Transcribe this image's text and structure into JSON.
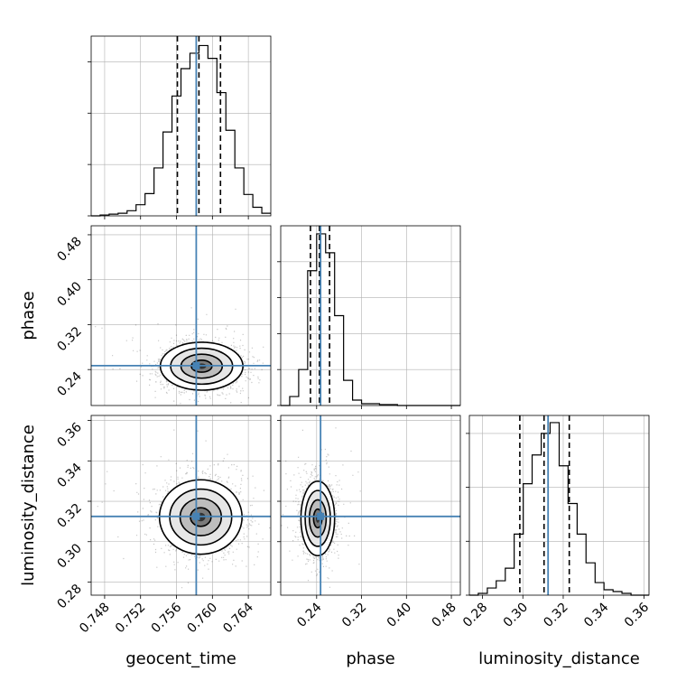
{
  "chart_data": {
    "type": "corner",
    "parameters": [
      "geocent_time",
      "phase",
      "luminosity_distance"
    ],
    "axes_labels": {
      "x": [
        "geocent_time",
        "phase",
        "luminosity_distance"
      ],
      "y": [
        "phase",
        "luminosity_distance"
      ]
    },
    "ranges": {
      "geocent_time": [
        0.7465,
        0.7665
      ],
      "phase": [
        0.176,
        0.496
      ],
      "luminosity_distance": [
        0.2735,
        0.3625
      ]
    },
    "ticks": {
      "geocent_time": [
        "0.748",
        "0.752",
        "0.756",
        "0.760",
        "0.764"
      ],
      "phase": [
        "0.24",
        "0.32",
        "0.40",
        "0.48"
      ],
      "luminosity_distance": [
        "0.28",
        "0.30",
        "0.32",
        "0.34",
        "0.36"
      ]
    },
    "truths": {
      "geocent_time": 0.7582,
      "phase": 0.247,
      "luminosity_distance": 0.3125
    },
    "quantiles": {
      "geocent_time": [
        0.7561,
        0.7585,
        0.7609
      ],
      "phase": [
        0.229,
        0.245,
        0.263
      ],
      "luminosity_distance": [
        0.2985,
        0.3105,
        0.323
      ]
    },
    "histograms": {
      "geocent_time": {
        "bin_edges": [
          0.7465,
          0.7475,
          0.7485,
          0.7495,
          0.7505,
          0.7515,
          0.7525,
          0.7535,
          0.7545,
          0.7555,
          0.7565,
          0.7575,
          0.7585,
          0.7595,
          0.7605,
          0.7615,
          0.7625,
          0.7635,
          0.7645,
          0.7655,
          0.7665
        ],
        "counts": [
          0,
          0.5,
          1,
          1.5,
          3,
          6.5,
          13,
          28,
          49,
          70,
          86,
          95,
          99.5,
          92,
          72,
          50,
          28,
          12.5,
          5,
          1.5
        ]
      },
      "phase": {
        "bin_edges": [
          0.176,
          0.192,
          0.208,
          0.224,
          0.24,
          0.256,
          0.272,
          0.288,
          0.304,
          0.32,
          0.336,
          0.352,
          0.368,
          0.384,
          0.4,
          0.416,
          0.432,
          0.448,
          0.464,
          0.48,
          0.496
        ],
        "counts": [
          0,
          5,
          20,
          75,
          95.5,
          85,
          50,
          14,
          3,
          1,
          1,
          0.5,
          0.5,
          0,
          0,
          0,
          0,
          0,
          0,
          0
        ]
      },
      "luminosity_distance": {
        "bin_edges": [
          0.2735,
          0.2779,
          0.2824,
          0.2868,
          0.2913,
          0.2957,
          0.3002,
          0.3046,
          0.3091,
          0.3135,
          0.318,
          0.3224,
          0.3269,
          0.3313,
          0.3358,
          0.3402,
          0.3447,
          0.3491,
          0.3536,
          0.358,
          0.3625
        ],
        "counts": [
          0,
          1,
          4,
          8,
          15,
          34,
          62,
          78,
          90,
          96,
          72,
          51,
          34,
          18,
          7,
          3,
          2,
          1,
          0,
          0
        ]
      }
    },
    "histogram_ylim": {
      "geocent_time": [
        0,
        105
      ],
      "phase": [
        0,
        100
      ],
      "luminosity_distance": [
        0,
        100
      ]
    },
    "histogram_ytick_values": {
      "geocent_time": [
        0,
        30,
        60,
        90
      ],
      "phase": [
        0,
        20,
        40,
        60,
        80
      ],
      "luminosity_distance": [
        0,
        30,
        60,
        90
      ]
    },
    "pairs": [
      {
        "x": "geocent_time",
        "y": "phase",
        "center": [
          0.7588,
          0.246
        ],
        "spread": [
          0.0023,
          0.022
        ],
        "contour_sigma": [
          0.5,
          1,
          1.5,
          2
        ]
      },
      {
        "x": "geocent_time",
        "y": "luminosity_distance",
        "center": [
          0.7587,
          0.3122
        ],
        "spread": [
          0.0023,
          0.0095
        ],
        "contour_sigma": [
          0.5,
          1,
          1.5,
          2
        ]
      },
      {
        "x": "phase",
        "y": "luminosity_distance",
        "center": [
          0.242,
          0.3115
        ],
        "spread": [
          0.015,
          0.0095
        ],
        "contour_sigma": [
          0.5,
          1,
          1.5,
          2
        ]
      }
    ],
    "grid": true,
    "colors": {
      "truth": "#4682b4",
      "hist": "#000000",
      "grid": "#b0b0b0",
      "scatter": "#000000",
      "density": "#000000"
    }
  }
}
